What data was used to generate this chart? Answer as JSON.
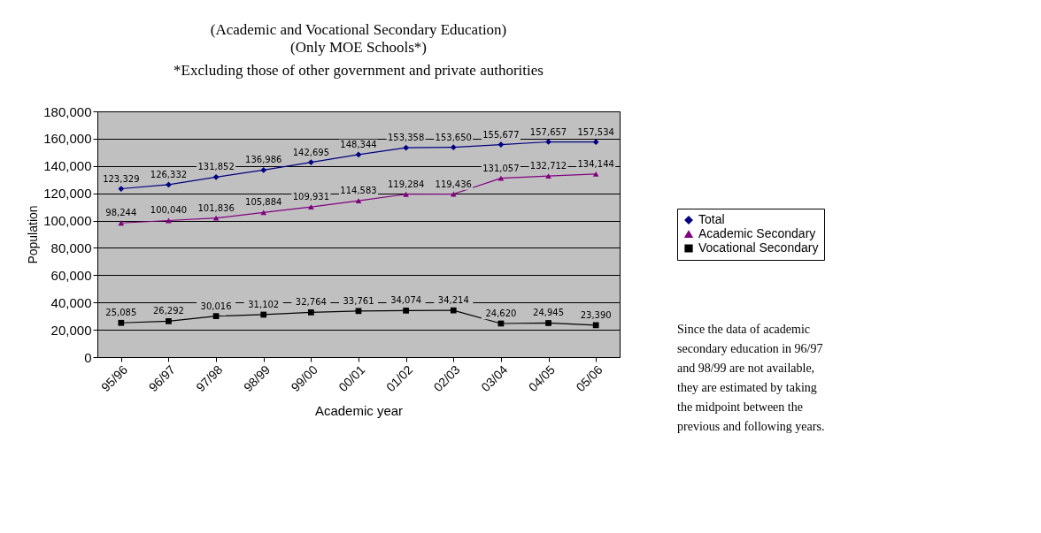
{
  "chart_data": {
    "type": "line",
    "title": "(Academic and Vocational Secondary Education)",
    "subtitle": "(Only MOE Schools*)\n*Excluding those of other government and private authorities",
    "xlabel": "Academic year",
    "ylabel": "Population",
    "categories": [
      "95/96",
      "96/97",
      "97/98",
      "98/99",
      "99/00",
      "00/01",
      "01/02",
      "02/03",
      "03/04",
      "04/05",
      "05/06"
    ],
    "series": [
      {
        "name": "Total",
        "color": "#000080",
        "marker": "diamond",
        "values": [
          123329,
          126332,
          131852,
          136986,
          142695,
          148344,
          153358,
          153650,
          155677,
          157657,
          157534
        ],
        "value_labels": [
          "123,329",
          "126,332",
          "131,852",
          "136,986",
          "142,695",
          "148,344",
          "153,358",
          "153,650",
          "155,677",
          "157,657",
          "157,534"
        ]
      },
      {
        "name": "Academic Secondary",
        "color": "#800080",
        "marker": "triangle",
        "values": [
          98244,
          100040,
          101836,
          105884,
          109931,
          114583,
          119284,
          119436,
          131057,
          132712,
          134144
        ],
        "value_labels": [
          "98,244",
          "100,040",
          "101,836",
          "105,884",
          "109,931",
          "114,583",
          "119,284",
          "119,436",
          "131,057",
          "132,712",
          "134,144"
        ]
      },
      {
        "name": "Vocational Secondary",
        "color": "#000000",
        "marker": "square",
        "values": [
          25085,
          26292,
          30016,
          31102,
          32764,
          33761,
          34074,
          34214,
          24620,
          24945,
          23390
        ],
        "value_labels": [
          "25,085",
          "26,292",
          "30,016",
          "31,102",
          "32,764",
          "33,761",
          "34,074",
          "34,214",
          "24,620",
          "24,945",
          "23,390"
        ]
      }
    ],
    "ylim": [
      0,
      180000
    ],
    "yticks": [
      0,
      {
        "value": 20000,
        "label": "20,000"
      },
      {
        "value": 40000,
        "label": "40,000"
      },
      {
        "value": 60000,
        "label": "60,000"
      },
      {
        "value": 80000,
        "label": "80,000"
      },
      {
        "value": 100000,
        "label": "100,000"
      },
      {
        "value": 120000,
        "label": "120,000"
      },
      {
        "value": 140000,
        "label": "140,000"
      },
      {
        "value": 160000,
        "label": "160,000"
      },
      {
        "value": 180000,
        "label": "180,000"
      }
    ],
    "grid": "y",
    "legend": "right",
    "line_style": "solid",
    "data_labels": true,
    "annotations": [
      "Since the data of academic\nsecondary education in 96/97\nand 98/99 are not available,\nthey are estimated by taking\nthe midpoint between the\nprevious and following years."
    ]
  }
}
